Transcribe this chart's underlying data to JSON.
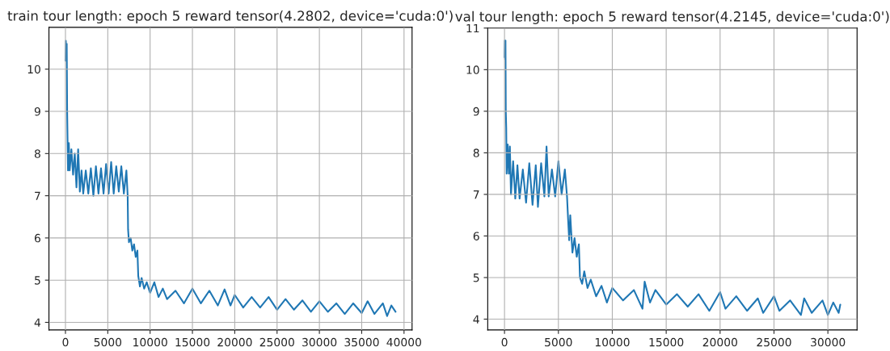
{
  "chart_data": [
    {
      "type": "line",
      "title": "train tour length: epoch 5 reward tensor(4.2802, device='cuda:0')",
      "grid": true,
      "xlim": [
        -1950,
        40950
      ],
      "ylim": [
        3.82,
        10.99
      ],
      "xticks": [
        0,
        5000,
        10000,
        15000,
        20000,
        25000,
        30000,
        35000,
        40000
      ],
      "yticks": [
        4,
        5,
        6,
        7,
        8,
        9,
        10
      ],
      "series": [
        {
          "color": "#1f77b4",
          "x": [
            0,
            50,
            100,
            150,
            200,
            250,
            300,
            400,
            500,
            700,
            900,
            1100,
            1300,
            1500,
            1700,
            1900,
            2100,
            2400,
            2700,
            3000,
            3300,
            3600,
            3900,
            4200,
            4500,
            4800,
            5100,
            5400,
            5700,
            6000,
            6300,
            6600,
            6900,
            7200,
            7350,
            7400,
            7500,
            7700,
            7900,
            8100,
            8300,
            8500,
            8600,
            8800,
            9000,
            9300,
            9600,
            10000,
            10500,
            11000,
            11500,
            12000,
            13000,
            14000,
            15000,
            16000,
            17000,
            18000,
            18800,
            19500,
            20000,
            21000,
            22000,
            23000,
            24000,
            25000,
            26000,
            27000,
            28000,
            29000,
            30000,
            31000,
            32000,
            33000,
            34000,
            35000,
            35700,
            36500,
            37500,
            38000,
            38500,
            39000
          ],
          "values": [
            10.2,
            10.67,
            10.3,
            10.6,
            9.0,
            8.3,
            7.6,
            8.25,
            7.6,
            8.1,
            7.5,
            8.0,
            7.2,
            8.1,
            7.1,
            7.6,
            7.05,
            7.6,
            7.05,
            7.65,
            7.0,
            7.7,
            7.05,
            7.65,
            7.05,
            7.75,
            7.05,
            7.8,
            7.05,
            7.7,
            7.1,
            7.7,
            7.05,
            7.6,
            7.0,
            6.2,
            5.9,
            6.0,
            5.7,
            5.85,
            5.55,
            5.7,
            5.1,
            4.85,
            5.05,
            4.8,
            4.95,
            4.7,
            4.95,
            4.6,
            4.8,
            4.55,
            4.75,
            4.45,
            4.8,
            4.45,
            4.75,
            4.4,
            4.78,
            4.4,
            4.65,
            4.35,
            4.6,
            4.35,
            4.6,
            4.3,
            4.55,
            4.3,
            4.52,
            4.25,
            4.5,
            4.25,
            4.45,
            4.2,
            4.45,
            4.22,
            4.5,
            4.2,
            4.45,
            4.15,
            4.4,
            4.25
          ]
        }
      ]
    },
    {
      "type": "line",
      "title": "val tour length: epoch 5 reward tensor(4.2145, device='cuda:0')",
      "grid": true,
      "xlim": [
        -1557,
        32707
      ],
      "ylim": [
        3.74,
        11.0
      ],
      "xticks": [
        0,
        5000,
        10000,
        15000,
        20000,
        25000,
        30000
      ],
      "yticks": [
        4,
        5,
        6,
        7,
        8,
        9,
        10,
        11
      ],
      "series": [
        {
          "color": "#1f77b4",
          "x": [
            0,
            30,
            60,
            90,
            120,
            160,
            200,
            300,
            400,
            500,
            600,
            800,
            1000,
            1200,
            1400,
            1700,
            2000,
            2300,
            2600,
            2900,
            3100,
            3400,
            3700,
            3900,
            4100,
            4400,
            4700,
            5000,
            5300,
            5600,
            5800,
            5900,
            6000,
            6100,
            6300,
            6500,
            6700,
            6900,
            7000,
            7200,
            7400,
            7700,
            8000,
            8500,
            9000,
            9500,
            10000,
            11000,
            12000,
            12800,
            13000,
            13500,
            14000,
            15000,
            16000,
            17000,
            18000,
            19000,
            20000,
            20500,
            21500,
            22500,
            23500,
            24000,
            25000,
            25500,
            26500,
            27500,
            27800,
            28500,
            29500,
            30000,
            30500,
            31000,
            31150
          ],
          "values": [
            10.3,
            10.7,
            10.25,
            10.7,
            9.0,
            8.6,
            7.5,
            8.2,
            7.5,
            8.15,
            7.0,
            7.8,
            6.9,
            7.7,
            6.9,
            7.6,
            6.8,
            7.75,
            6.75,
            7.7,
            6.7,
            7.75,
            6.95,
            8.15,
            6.95,
            7.6,
            6.95,
            7.8,
            7.0,
            7.6,
            6.95,
            6.4,
            5.9,
            6.5,
            5.6,
            5.95,
            5.5,
            5.8,
            5.0,
            4.85,
            5.15,
            4.75,
            4.95,
            4.55,
            4.8,
            4.4,
            4.75,
            4.45,
            4.7,
            4.25,
            4.9,
            4.4,
            4.7,
            4.35,
            4.6,
            4.3,
            4.6,
            4.2,
            4.65,
            4.25,
            4.55,
            4.2,
            4.5,
            4.15,
            4.55,
            4.2,
            4.45,
            4.1,
            4.5,
            4.15,
            4.45,
            4.1,
            4.4,
            4.15,
            4.35
          ]
        }
      ]
    }
  ]
}
